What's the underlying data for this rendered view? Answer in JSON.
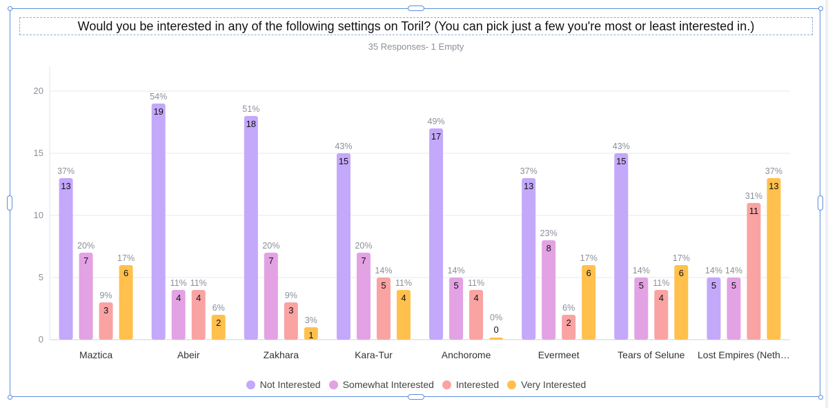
{
  "title": "Would you be interested in any of the following settings on Toril? (You can pick just a few you're most or least interested in.)",
  "subtitle": "35 Responses- 1 Empty",
  "chart_data": {
    "type": "bar",
    "categories": [
      "Maztica",
      "Abeir",
      "Zakhara",
      "Kara-Tur",
      "Anchorome",
      "Evermeet",
      "Tears of Selune",
      "Lost Empires (Neth…"
    ],
    "ylim": [
      0,
      22
    ],
    "yticks": [
      0,
      5,
      10,
      15,
      20
    ],
    "grid": true,
    "legend_position": "bottom",
    "series": [
      {
        "name": "Not Interested",
        "color": "#c4a8fa",
        "values": [
          13,
          19,
          18,
          15,
          17,
          13,
          15,
          5
        ],
        "percents": [
          "37%",
          "54%",
          "51%",
          "43%",
          "49%",
          "37%",
          "43%",
          "14%"
        ]
      },
      {
        "name": "Somewhat Interested",
        "color": "#e3a2e3",
        "values": [
          7,
          4,
          7,
          7,
          5,
          8,
          5,
          5
        ],
        "percents": [
          "20%",
          "11%",
          "20%",
          "20%",
          "14%",
          "23%",
          "14%",
          "14%"
        ]
      },
      {
        "name": "Interested",
        "color": "#f9a3a3",
        "values": [
          3,
          4,
          3,
          5,
          4,
          2,
          4,
          11
        ],
        "percents": [
          "9%",
          "11%",
          "9%",
          "14%",
          "11%",
          "6%",
          "11%",
          "31%"
        ]
      },
      {
        "name": "Very Interested",
        "color": "#ffc04d",
        "values": [
          6,
          2,
          1,
          4,
          0,
          6,
          6,
          13
        ],
        "percents": [
          "17%",
          "6%",
          "3%",
          "11%",
          "0%",
          "17%",
          "17%",
          "37%"
        ]
      }
    ]
  }
}
